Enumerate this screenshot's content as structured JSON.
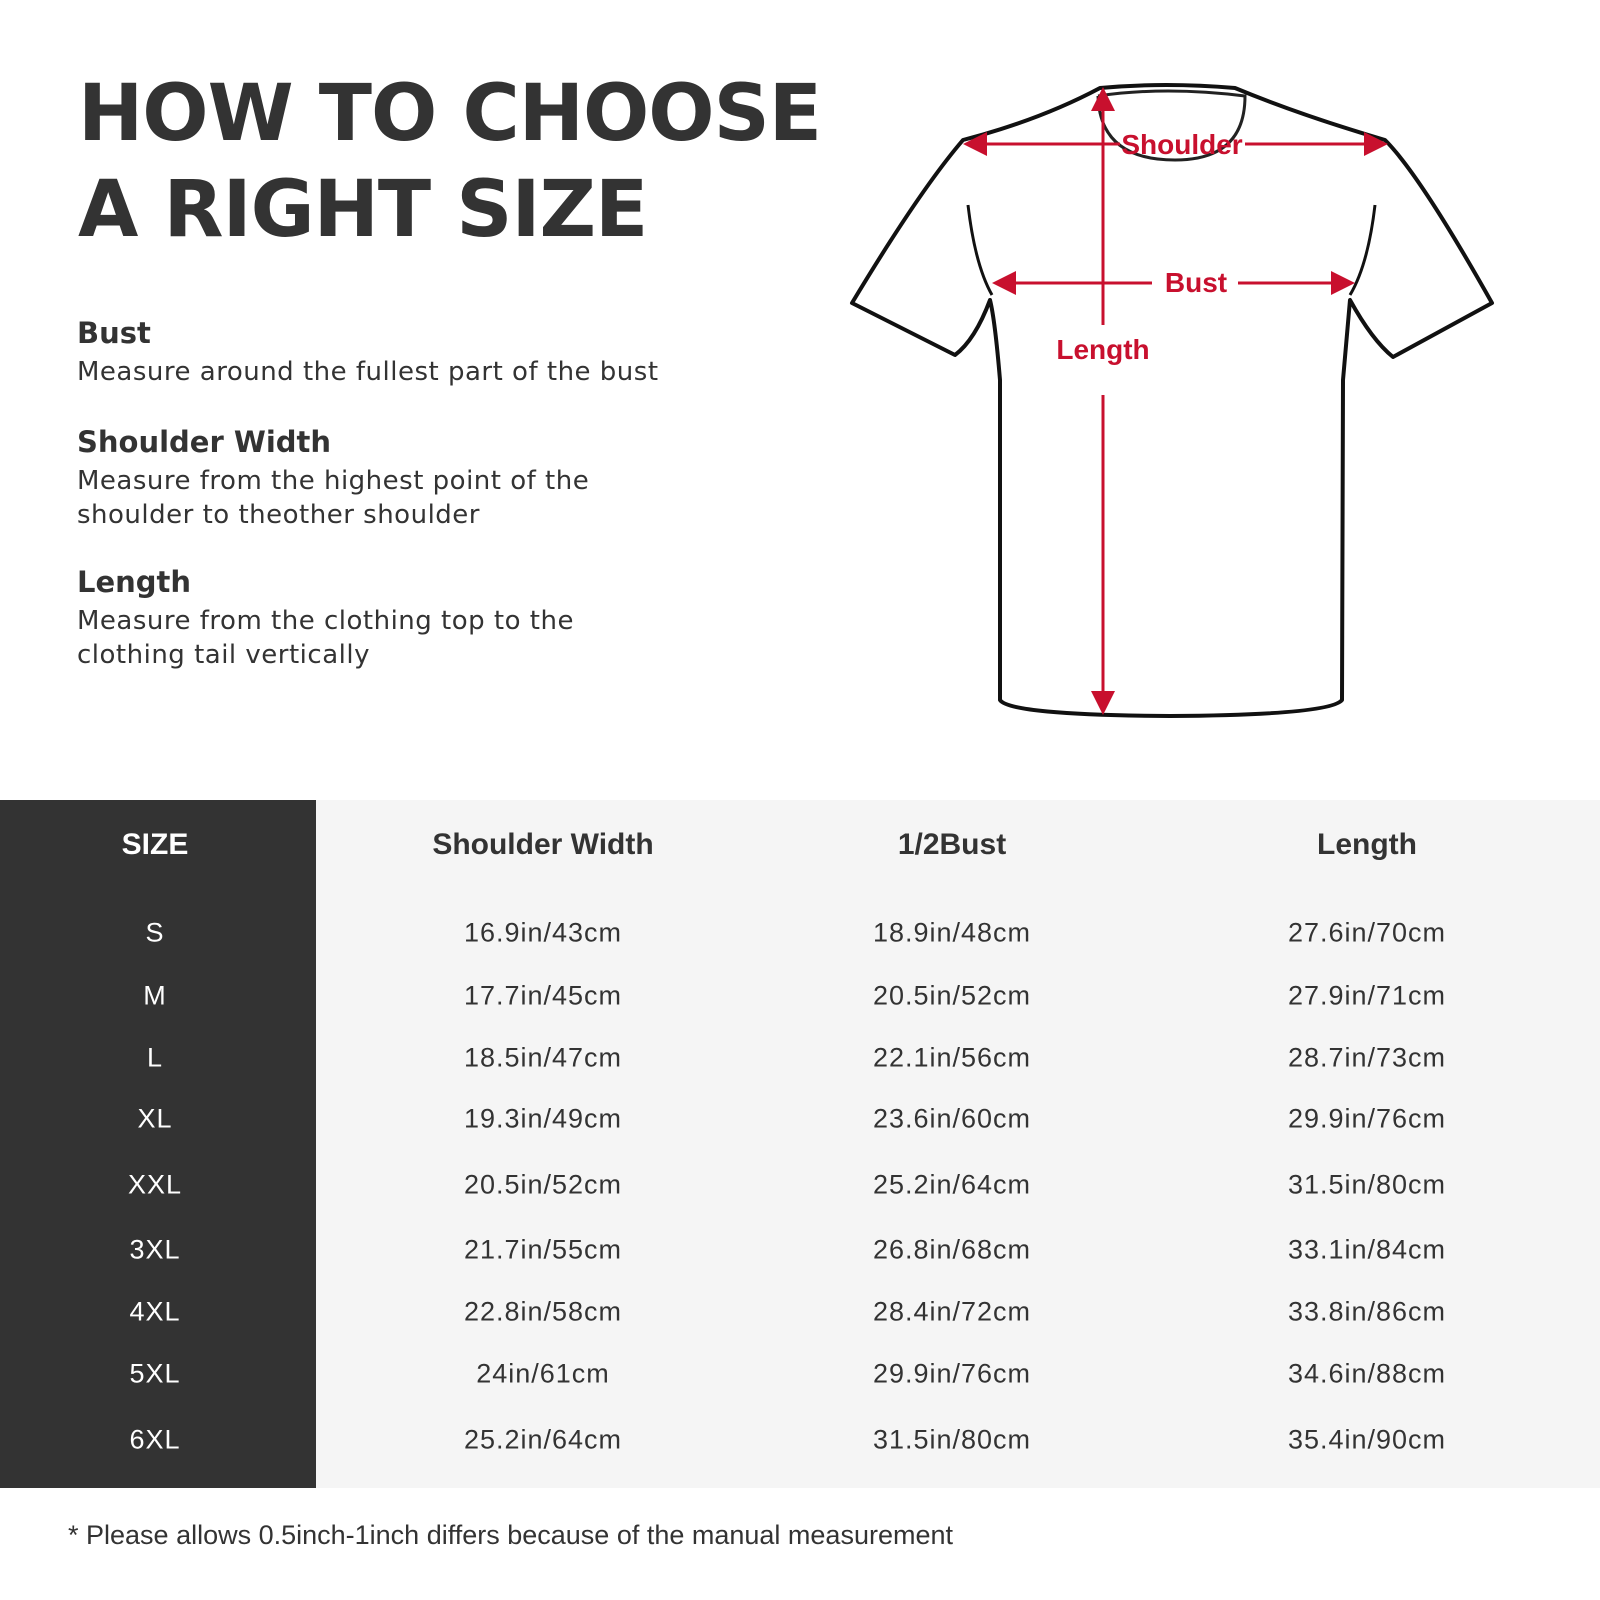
{
  "title": {
    "line1": "HOW TO CHOOSE",
    "line2": "A RIGHT SIZE"
  },
  "guides": [
    {
      "heading": "Bust",
      "text": [
        "Measure around the fullest part of the bust"
      ]
    },
    {
      "heading": "Shoulder Width",
      "text": [
        "Measure from the highest point of the",
        "shoulder to theother shoulder"
      ]
    },
    {
      "heading": "Length",
      "text": [
        "Measure from the clothing top to the",
        "clothing tail vertically"
      ]
    }
  ],
  "diagram": {
    "shoulder_label": "Shoulder",
    "bust_label": "Bust",
    "length_label": "Length",
    "accent_color": "#c8102e"
  },
  "table": {
    "headers": [
      "SIZE",
      "Shoulder Width",
      "1/2Bust",
      "Length"
    ],
    "rows": [
      [
        "S",
        "16.9in/43cm",
        "18.9in/48cm",
        "27.6in/70cm"
      ],
      [
        "M",
        "17.7in/45cm",
        "20.5in/52cm",
        "27.9in/71cm"
      ],
      [
        "L",
        "18.5in/47cm",
        "22.1in/56cm",
        "28.7in/73cm"
      ],
      [
        "XL",
        "19.3in/49cm",
        "23.6in/60cm",
        "29.9in/76cm"
      ],
      [
        "XXL",
        "20.5in/52cm",
        "25.2in/64cm",
        "31.5in/80cm"
      ],
      [
        "3XL",
        "21.7in/55cm",
        "26.8in/68cm",
        "33.1in/84cm"
      ],
      [
        "4XL",
        "22.8in/58cm",
        "28.4in/72cm",
        "33.8in/86cm"
      ],
      [
        "5XL",
        "24in/61cm",
        "29.9in/76cm",
        "34.6in/88cm"
      ],
      [
        "6XL",
        "25.2in/64cm",
        "31.5in/80cm",
        "35.4in/90cm"
      ]
    ]
  },
  "note": "* Please allows 0.5inch-1inch differs because of the  manual measurement"
}
